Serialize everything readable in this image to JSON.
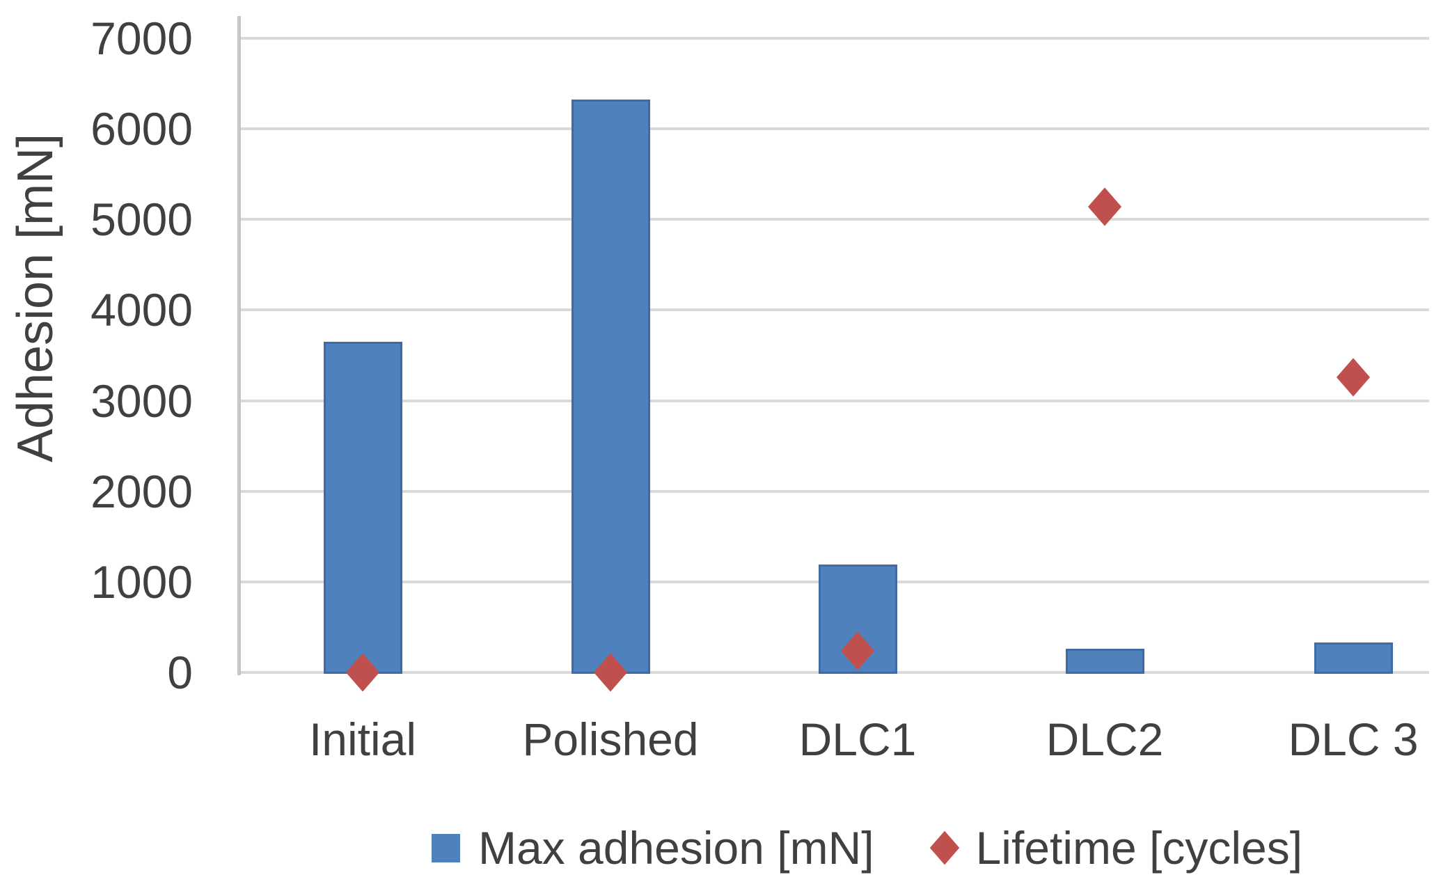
{
  "figure": {
    "background_color": "#ffffff",
    "text_color": "#404040",
    "gridline_color": "#d9d9d9",
    "axis_line_color": "#c6c6c6"
  },
  "chart_data": {
    "type": "bar",
    "categories": [
      "Initial",
      "Polished",
      "DLC1",
      "DLC2",
      "DLC 3"
    ],
    "series": [
      {
        "name": "Max adhesion [mN]",
        "type": "bar",
        "color": "#4f81bd",
        "border_color": "#3e6ba5",
        "values": [
          3650,
          6320,
          1190,
          260,
          330
        ]
      },
      {
        "name": "Lifetime [cycles]",
        "type": "scatter",
        "marker": "diamond",
        "color": "#c0504d",
        "values": [
          0,
          0,
          240,
          5140,
          3260
        ]
      }
    ],
    "title": "",
    "xlabel": "",
    "ylabel": "Adhesion [mN]",
    "ylim": [
      0,
      7000
    ],
    "ytick_step": 1000,
    "ytick_labels": [
      "0",
      "1000",
      "2000",
      "3000",
      "4000",
      "5000",
      "6000",
      "7000"
    ],
    "grid": true,
    "legend_position": "bottom"
  }
}
